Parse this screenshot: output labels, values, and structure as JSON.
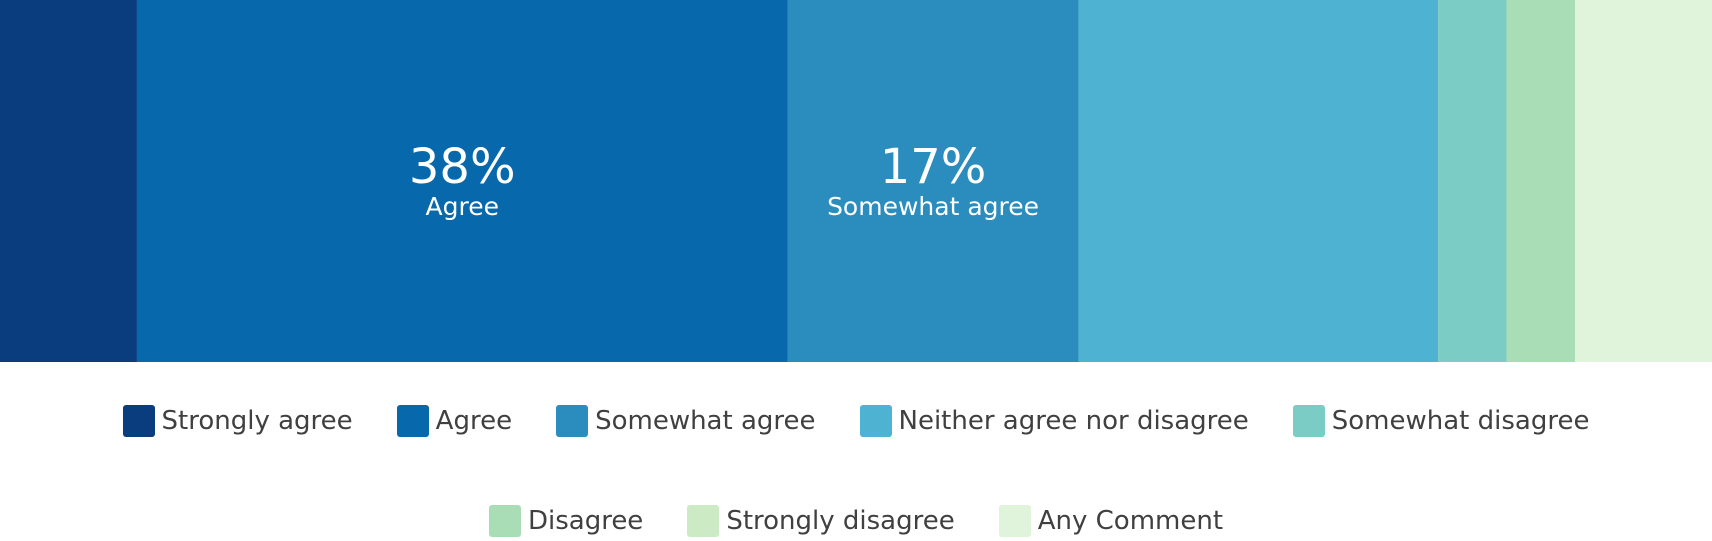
{
  "chart_data": {
    "type": "stacked-bar-100",
    "orientation": "horizontal",
    "xlim": [
      0,
      100
    ],
    "series": [
      {
        "name": "Strongly agree",
        "color": "#0a3d7e",
        "values": [
          8
        ]
      },
      {
        "name": "Agree",
        "color": "#0868ac",
        "values": [
          38
        ],
        "value_labels": [
          "38%"
        ]
      },
      {
        "name": "Somewhat agree",
        "color": "#2b8cbe",
        "values": [
          17
        ],
        "value_labels": [
          "17%"
        ]
      },
      {
        "name": "Neither agree nor disagree",
        "color": "#4eb3d3",
        "values": [
          21
        ]
      },
      {
        "name": "Somewhat disagree",
        "color": "#7bccc4",
        "values": [
          4
        ]
      },
      {
        "name": "Disagree",
        "color": "#a8ddb5",
        "values": [
          4
        ]
      },
      {
        "name": "Strongly disagree",
        "color": "#ccebc5",
        "values": [
          0
        ]
      },
      {
        "name": "Any Comment",
        "color": "#e0f3db",
        "values": [
          8
        ]
      }
    ]
  }
}
